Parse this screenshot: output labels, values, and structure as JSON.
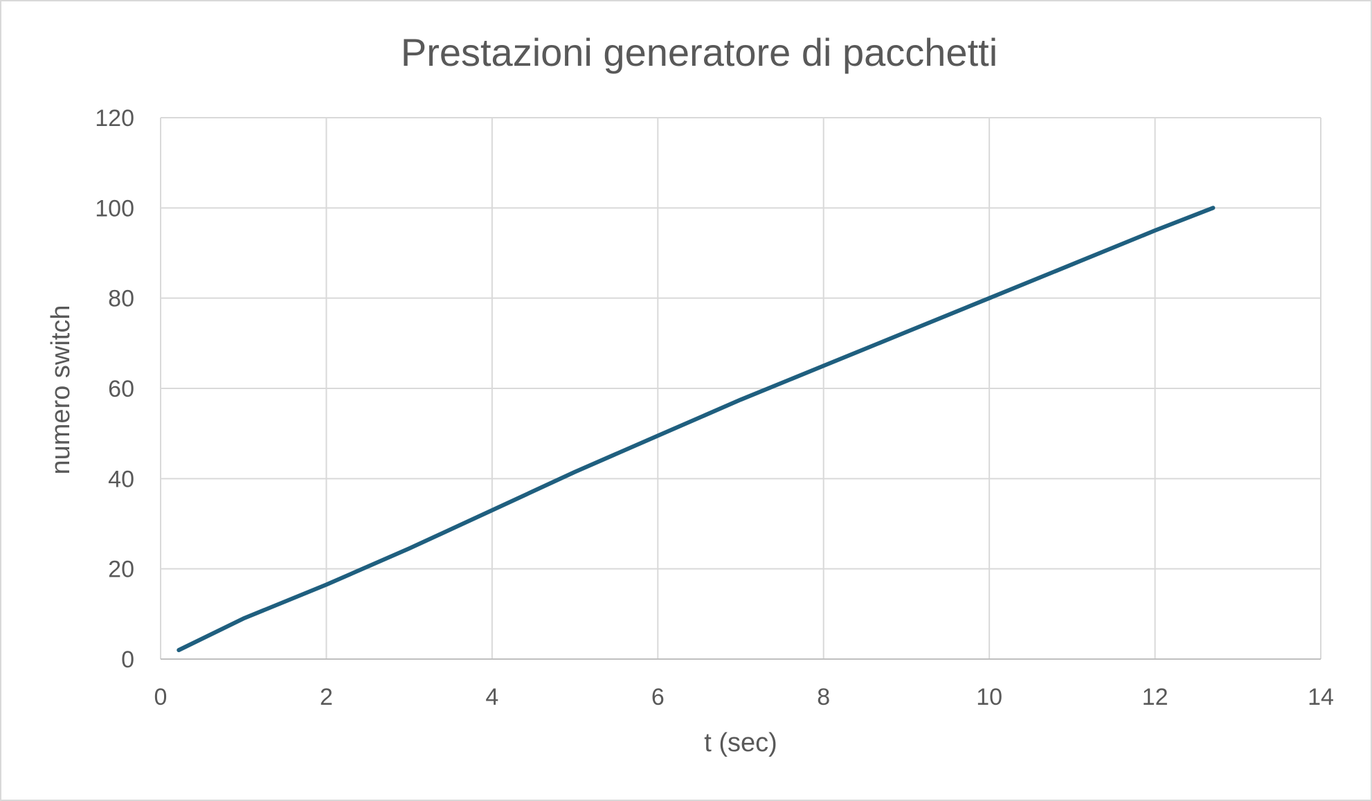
{
  "chart_data": {
    "type": "line",
    "title": "Prestazioni generatore di pacchetti",
    "xlabel": "t (sec)",
    "ylabel": "numero switch",
    "xlim": [
      0,
      14
    ],
    "ylim": [
      0,
      120
    ],
    "xticks": [
      0,
      2,
      4,
      6,
      8,
      10,
      12,
      14
    ],
    "yticks": [
      0,
      20,
      40,
      60,
      80,
      100,
      120
    ],
    "grid": true,
    "legend": "none",
    "colors": {
      "series": "#1f5f7f",
      "grid": "#d9d9d9",
      "text": "#595959",
      "border": "#d9d9d9"
    },
    "series": [
      {
        "x": [
          0.22,
          1,
          2,
          3,
          4,
          5,
          6,
          7,
          8,
          9,
          10,
          11,
          12,
          12.7
        ],
        "values": [
          2,
          9,
          16.5,
          24.5,
          33,
          41.5,
          49.5,
          57.5,
          65,
          72.5,
          80,
          87.5,
          95,
          100
        ]
      }
    ]
  }
}
